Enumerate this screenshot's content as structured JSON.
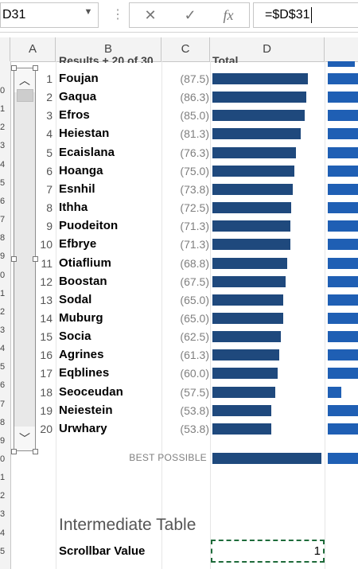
{
  "formula_bar": {
    "name_box": "D31",
    "dropdown_icon": "chevron-down-icon",
    "cancel_icon": "close-icon",
    "enter_icon": "checkmark-icon",
    "function_icon": "fx-icon",
    "formula": "=$D$31"
  },
  "columns": [
    "A",
    "B",
    "C",
    "D"
  ],
  "header_row_partial": "Results + 20 of 30",
  "header_total_partial": "Total",
  "rows": [
    {
      "rank": "1",
      "name": "Foujan",
      "score": "(87.5)"
    },
    {
      "rank": "2",
      "name": "Gaqua",
      "score": "(86.3)"
    },
    {
      "rank": "3",
      "name": "Efros",
      "score": "(85.0)"
    },
    {
      "rank": "4",
      "name": "Heiestan",
      "score": "(81.3)"
    },
    {
      "rank": "5",
      "name": "Ecaislana",
      "score": "(76.3)"
    },
    {
      "rank": "6",
      "name": "Hoanga",
      "score": "(75.0)"
    },
    {
      "rank": "7",
      "name": "Esnhil",
      "score": "(73.8)"
    },
    {
      "rank": "8",
      "name": "Ithha",
      "score": "(72.5)"
    },
    {
      "rank": "9",
      "name": "Puodeiton",
      "score": "(71.3)"
    },
    {
      "rank": "10",
      "name": "Efbrye",
      "score": "(71.3)"
    },
    {
      "rank": "11",
      "name": "Otiaflium",
      "score": "(68.8)"
    },
    {
      "rank": "12",
      "name": "Boostan",
      "score": "(67.5)"
    },
    {
      "rank": "13",
      "name": "Sodal",
      "score": "(65.0)"
    },
    {
      "rank": "14",
      "name": "Muburg",
      "score": "(65.0)"
    },
    {
      "rank": "15",
      "name": "Socia",
      "score": "(62.5)"
    },
    {
      "rank": "16",
      "name": "Agrines",
      "score": "(61.3)"
    },
    {
      "rank": "17",
      "name": "Eqblines",
      "score": "(60.0)"
    },
    {
      "rank": "18",
      "name": "Seoceudan",
      "score": "(57.5)"
    },
    {
      "rank": "19",
      "name": "Neiestein",
      "score": "(53.8)"
    },
    {
      "rank": "20",
      "name": "Urwhary",
      "score": "(53.8)"
    }
  ],
  "best_possible_label": "BEST POSSIBLE",
  "best_possible_value": 100,
  "best_possible_secondary": 100,
  "secondary_bar_values": [
    100,
    100,
    100,
    100,
    100,
    100,
    100,
    100,
    100,
    100,
    100,
    100,
    100,
    100,
    100,
    100,
    100,
    45,
    100,
    100
  ],
  "intermediate": {
    "title": "Intermediate Table",
    "scrollbar_label": "Scrollbar Value",
    "scrollbar_value": "1"
  },
  "row_header_glyphs": [
    "0",
    "1",
    "2",
    "3",
    "4",
    "5",
    "6",
    "7",
    "8",
    "9",
    "0",
    "1",
    "2",
    "3",
    "4",
    "5",
    "6",
    "7",
    "8",
    "9",
    "0",
    "1",
    "2",
    "3",
    "4",
    "5"
  ],
  "scrollbar": {
    "up_icon": "chevron-up-icon",
    "down_icon": "chevron-down-icon",
    "position": 0
  },
  "colors": {
    "bar": "#1f497d",
    "bar_secondary": "#1f5fb4",
    "selection": "#1e6b3a"
  }
}
